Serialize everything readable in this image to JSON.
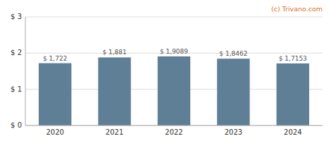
{
  "chart_data": {
    "type": "bar",
    "categories": [
      "2020",
      "2021",
      "2022",
      "2023",
      "2024"
    ],
    "values": [
      1.722,
      1.881,
      1.9089,
      1.8462,
      1.7153
    ],
    "value_labels": [
      "$ 1,722",
      "$ 1,881",
      "$ 1,9089",
      "$ 1,8462",
      "$ 1,7153"
    ],
    "color": "#5f7f96",
    "ylim": [
      0,
      3
    ],
    "yticks": [
      {
        "value": 0,
        "label": "$ 0"
      },
      {
        "value": 1,
        "label": "$ 1"
      },
      {
        "value": 2,
        "label": "$ 2"
      },
      {
        "value": 3,
        "label": "$ 3"
      }
    ],
    "grid": true,
    "data_labels": true,
    "annotations": [
      {
        "text": "(c) Trivano.com",
        "color": "#e07020"
      }
    ]
  }
}
